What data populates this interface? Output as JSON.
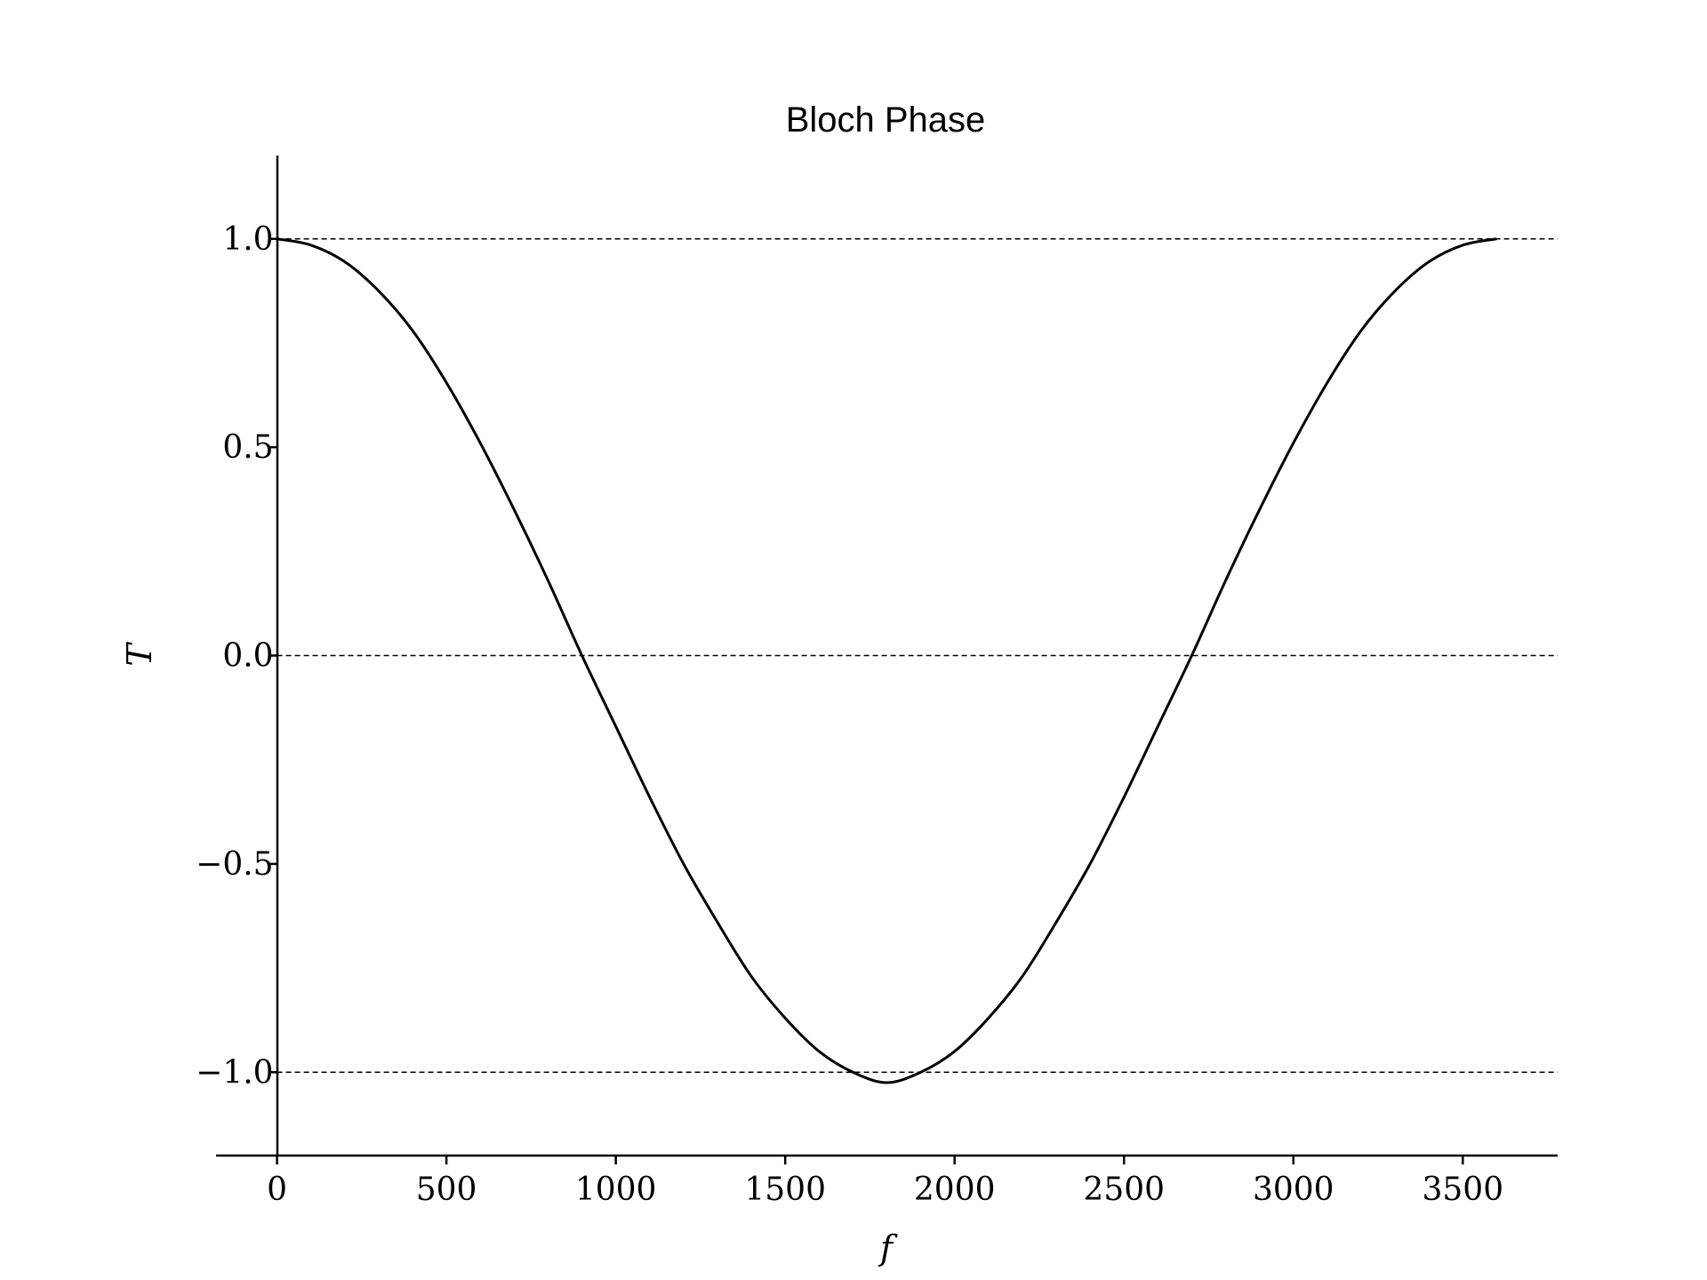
{
  "chart_data": {
    "type": "line",
    "title": "Bloch Phase",
    "xlabel": "f",
    "ylabel": "T",
    "xlim": [
      -180,
      3780
    ],
    "ylim": [
      -1.2,
      1.2
    ],
    "xticks": [
      0,
      500,
      1000,
      1500,
      2000,
      2500,
      3000,
      3500
    ],
    "xtick_labels": [
      "0",
      "500",
      "1000",
      "1500",
      "2000",
      "2500",
      "3000",
      "3500"
    ],
    "yticks": [
      1.0,
      0.5,
      0.0,
      -0.5,
      -1.0
    ],
    "ytick_labels": [
      "1.0",
      "0.5",
      "0.0",
      "−0.5",
      "−1.0"
    ],
    "reference_lines": [
      1.0,
      0.0,
      -1.0
    ],
    "grid": false,
    "series": [
      {
        "color": "#000000",
        "x": [
          0,
          100,
          200,
          300,
          400,
          500,
          600,
          700,
          800,
          900,
          1000,
          1100,
          1200,
          1300,
          1400,
          1500,
          1600,
          1700,
          1800,
          1900,
          2000,
          2100,
          2200,
          2300,
          2400,
          2500,
          2600,
          2700,
          2800,
          2900,
          3000,
          3100,
          3200,
          3300,
          3400,
          3500,
          3600
        ],
        "y": [
          1.0,
          0.985,
          0.945,
          0.875,
          0.78,
          0.655,
          0.51,
          0.35,
          0.18,
          0.0,
          -0.17,
          -0.34,
          -0.5,
          -0.64,
          -0.77,
          -0.87,
          -0.95,
          -1.0,
          -1.025,
          -1.0,
          -0.95,
          -0.87,
          -0.77,
          -0.64,
          -0.5,
          -0.34,
          -0.17,
          0.0,
          0.18,
          0.35,
          0.51,
          0.655,
          0.78,
          0.875,
          0.945,
          0.985,
          1.0
        ]
      }
    ]
  }
}
